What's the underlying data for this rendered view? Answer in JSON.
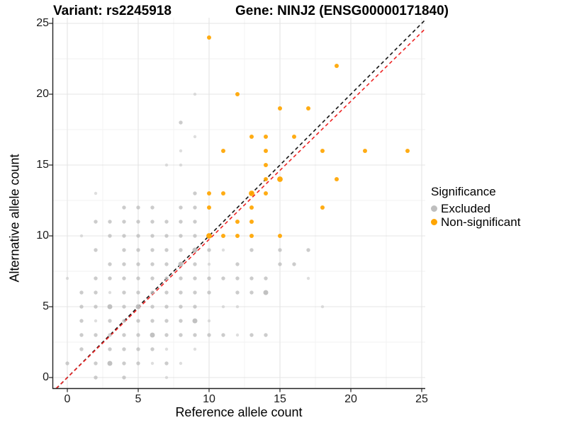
{
  "titles": {
    "variant": "Variant: rs2245918",
    "gene": "Gene: NINJ2 (ENSG00000171840)"
  },
  "legend": {
    "title": "Significance",
    "items": [
      {
        "label": "Excluded",
        "color": "#BEBEBE"
      },
      {
        "label": "Non-significant",
        "color": "#FFA500"
      }
    ]
  },
  "colors": {
    "excluded_point": "#BEBEBE",
    "nonsignificant_point": "#FFA500",
    "identity_line": "#141414",
    "fit_line": "#EE2222",
    "major_grid": "#E4E4E4",
    "minor_grid": "#F2F2F2",
    "axis_line": "#222222"
  },
  "chart_data": {
    "type": "scatter",
    "title": "Variant: rs2245918   Gene: NINJ2 (ENSG00000171840)",
    "xlabel": "Reference allele count",
    "ylabel": "Alternative allele count",
    "xlim": [
      -1,
      25.25
    ],
    "ylim": [
      -0.75,
      25.4
    ],
    "x_ticks": [
      0,
      5,
      10,
      15,
      20,
      25
    ],
    "y_ticks": [
      0,
      5,
      10,
      15,
      20,
      25
    ],
    "grid": "major+minor",
    "legend_position": "right",
    "legend_title": "Significance",
    "series": [
      {
        "name": "Excluded",
        "color": "#BEBEBE",
        "points": [
          [
            2,
            0,
            2
          ],
          [
            4,
            0,
            2
          ],
          [
            7,
            0,
            1
          ],
          [
            0,
            1,
            2
          ],
          [
            2,
            1,
            2
          ],
          [
            3,
            1,
            3
          ],
          [
            4,
            1,
            2
          ],
          [
            5,
            1,
            2
          ],
          [
            6,
            1,
            1
          ],
          [
            7,
            1,
            2
          ],
          [
            8,
            1,
            1
          ],
          [
            1,
            2,
            2
          ],
          [
            3,
            2,
            2
          ],
          [
            4,
            2,
            2
          ],
          [
            5,
            2,
            2
          ],
          [
            6,
            2,
            2
          ],
          [
            7,
            2,
            1
          ],
          [
            9,
            2,
            1
          ],
          [
            1,
            3,
            2
          ],
          [
            2,
            3,
            2
          ],
          [
            3,
            3,
            2
          ],
          [
            4,
            3,
            2
          ],
          [
            5,
            3,
            2
          ],
          [
            6,
            3,
            3
          ],
          [
            7,
            3,
            2
          ],
          [
            8,
            3,
            2
          ],
          [
            9,
            3,
            2
          ],
          [
            10,
            3,
            2
          ],
          [
            11,
            3,
            2
          ],
          [
            12,
            3,
            1
          ],
          [
            13,
            3,
            2
          ],
          [
            14,
            3,
            2
          ],
          [
            1,
            4,
            2
          ],
          [
            2,
            4,
            1
          ],
          [
            3,
            4,
            2
          ],
          [
            4,
            4,
            2
          ],
          [
            5,
            4,
            2
          ],
          [
            6,
            4,
            2
          ],
          [
            7,
            4,
            2
          ],
          [
            8,
            4,
            2
          ],
          [
            9,
            4,
            3
          ],
          [
            10,
            4,
            1
          ],
          [
            1,
            5,
            2
          ],
          [
            2,
            5,
            2
          ],
          [
            3,
            5,
            3
          ],
          [
            4,
            5,
            2
          ],
          [
            5,
            5,
            3
          ],
          [
            6,
            5,
            2
          ],
          [
            7,
            5,
            2
          ],
          [
            8,
            5,
            2
          ],
          [
            9,
            5,
            2
          ],
          [
            11,
            5,
            1
          ],
          [
            12,
            5,
            1
          ],
          [
            18,
            5,
            1
          ],
          [
            1,
            6,
            2
          ],
          [
            2,
            6,
            2
          ],
          [
            3,
            6,
            1
          ],
          [
            4,
            6,
            2
          ],
          [
            5,
            6,
            2
          ],
          [
            6,
            6,
            2
          ],
          [
            7,
            6,
            2
          ],
          [
            8,
            6,
            2
          ],
          [
            9,
            6,
            2
          ],
          [
            10,
            6,
            2
          ],
          [
            12,
            6,
            2
          ],
          [
            13,
            6,
            2
          ],
          [
            14,
            6,
            3
          ],
          [
            0,
            7,
            1
          ],
          [
            2,
            7,
            2
          ],
          [
            3,
            7,
            2
          ],
          [
            4,
            7,
            2
          ],
          [
            5,
            7,
            2
          ],
          [
            6,
            7,
            2
          ],
          [
            7,
            7,
            2
          ],
          [
            8,
            7,
            2
          ],
          [
            9,
            7,
            2
          ],
          [
            10,
            7,
            2
          ],
          [
            11,
            7,
            2
          ],
          [
            12,
            7,
            2
          ],
          [
            13,
            7,
            2
          ],
          [
            14,
            7,
            2
          ],
          [
            17,
            7,
            1
          ],
          [
            3,
            8,
            2
          ],
          [
            4,
            8,
            2
          ],
          [
            5,
            8,
            2
          ],
          [
            6,
            8,
            2
          ],
          [
            7,
            8,
            2
          ],
          [
            8,
            8,
            3
          ],
          [
            9,
            8,
            2
          ],
          [
            10,
            8,
            1
          ],
          [
            12,
            8,
            2
          ],
          [
            15,
            8,
            2
          ],
          [
            16,
            8,
            2
          ],
          [
            2,
            9,
            2
          ],
          [
            4,
            9,
            2
          ],
          [
            5,
            9,
            2
          ],
          [
            6,
            9,
            2
          ],
          [
            7,
            9,
            2
          ],
          [
            8,
            9,
            2
          ],
          [
            9,
            9,
            3
          ],
          [
            10,
            9,
            2
          ],
          [
            11,
            9,
            1
          ],
          [
            13,
            9,
            2
          ],
          [
            15,
            9,
            2
          ],
          [
            17,
            9,
            2
          ],
          [
            1,
            10,
            1
          ],
          [
            3,
            10,
            2
          ],
          [
            4,
            10,
            2
          ],
          [
            5,
            10,
            2
          ],
          [
            6,
            10,
            2
          ],
          [
            7,
            10,
            2
          ],
          [
            8,
            10,
            2
          ],
          [
            9,
            10,
            2
          ],
          [
            2,
            11,
            2
          ],
          [
            3,
            11,
            2
          ],
          [
            4,
            11,
            2
          ],
          [
            5,
            11,
            2
          ],
          [
            6,
            11,
            2
          ],
          [
            7,
            11,
            2
          ],
          [
            8,
            11,
            2
          ],
          [
            9,
            11,
            2
          ],
          [
            4,
            12,
            2
          ],
          [
            5,
            12,
            2
          ],
          [
            6,
            12,
            2
          ],
          [
            8,
            12,
            2
          ],
          [
            9,
            12,
            2
          ],
          [
            2,
            13,
            1
          ],
          [
            9,
            13,
            2
          ],
          [
            7,
            15,
            1
          ],
          [
            8,
            15,
            1
          ],
          [
            8,
            16,
            1
          ],
          [
            9,
            17,
            1
          ],
          [
            8,
            18,
            2
          ],
          [
            9,
            20,
            1
          ]
        ]
      },
      {
        "name": "Non-significant",
        "color": "#FFA500",
        "points": [
          [
            10,
            10,
            3
          ],
          [
            11,
            10,
            2
          ],
          [
            12,
            10,
            2
          ],
          [
            13,
            10,
            2
          ],
          [
            15,
            10,
            2
          ],
          [
            12,
            11,
            2
          ],
          [
            13,
            11,
            2
          ],
          [
            10,
            12,
            2
          ],
          [
            13,
            12,
            2
          ],
          [
            18,
            12,
            2
          ],
          [
            10,
            13,
            2
          ],
          [
            11,
            13,
            2
          ],
          [
            13,
            13,
            3
          ],
          [
            14,
            13,
            2
          ],
          [
            14,
            14,
            2
          ],
          [
            15,
            14,
            3
          ],
          [
            19,
            14,
            2
          ],
          [
            14,
            15,
            2
          ],
          [
            11,
            16,
            2
          ],
          [
            14,
            16,
            2
          ],
          [
            18,
            16,
            2
          ],
          [
            21,
            16,
            2
          ],
          [
            24,
            16,
            2
          ],
          [
            13,
            17,
            2
          ],
          [
            14,
            17,
            2
          ],
          [
            16,
            17,
            2
          ],
          [
            15,
            19,
            2
          ],
          [
            17,
            19,
            2
          ],
          [
            12,
            20,
            2
          ],
          [
            19,
            22,
            2
          ],
          [
            10,
            24,
            2
          ]
        ]
      }
    ],
    "reference_lines": [
      {
        "name": "identity",
        "style": "dashed",
        "color": "#141414",
        "slope": 1.0,
        "intercept": 0
      },
      {
        "name": "fit",
        "style": "dashed",
        "color": "#EE2222",
        "slope": 0.975,
        "intercept": 0
      }
    ]
  }
}
